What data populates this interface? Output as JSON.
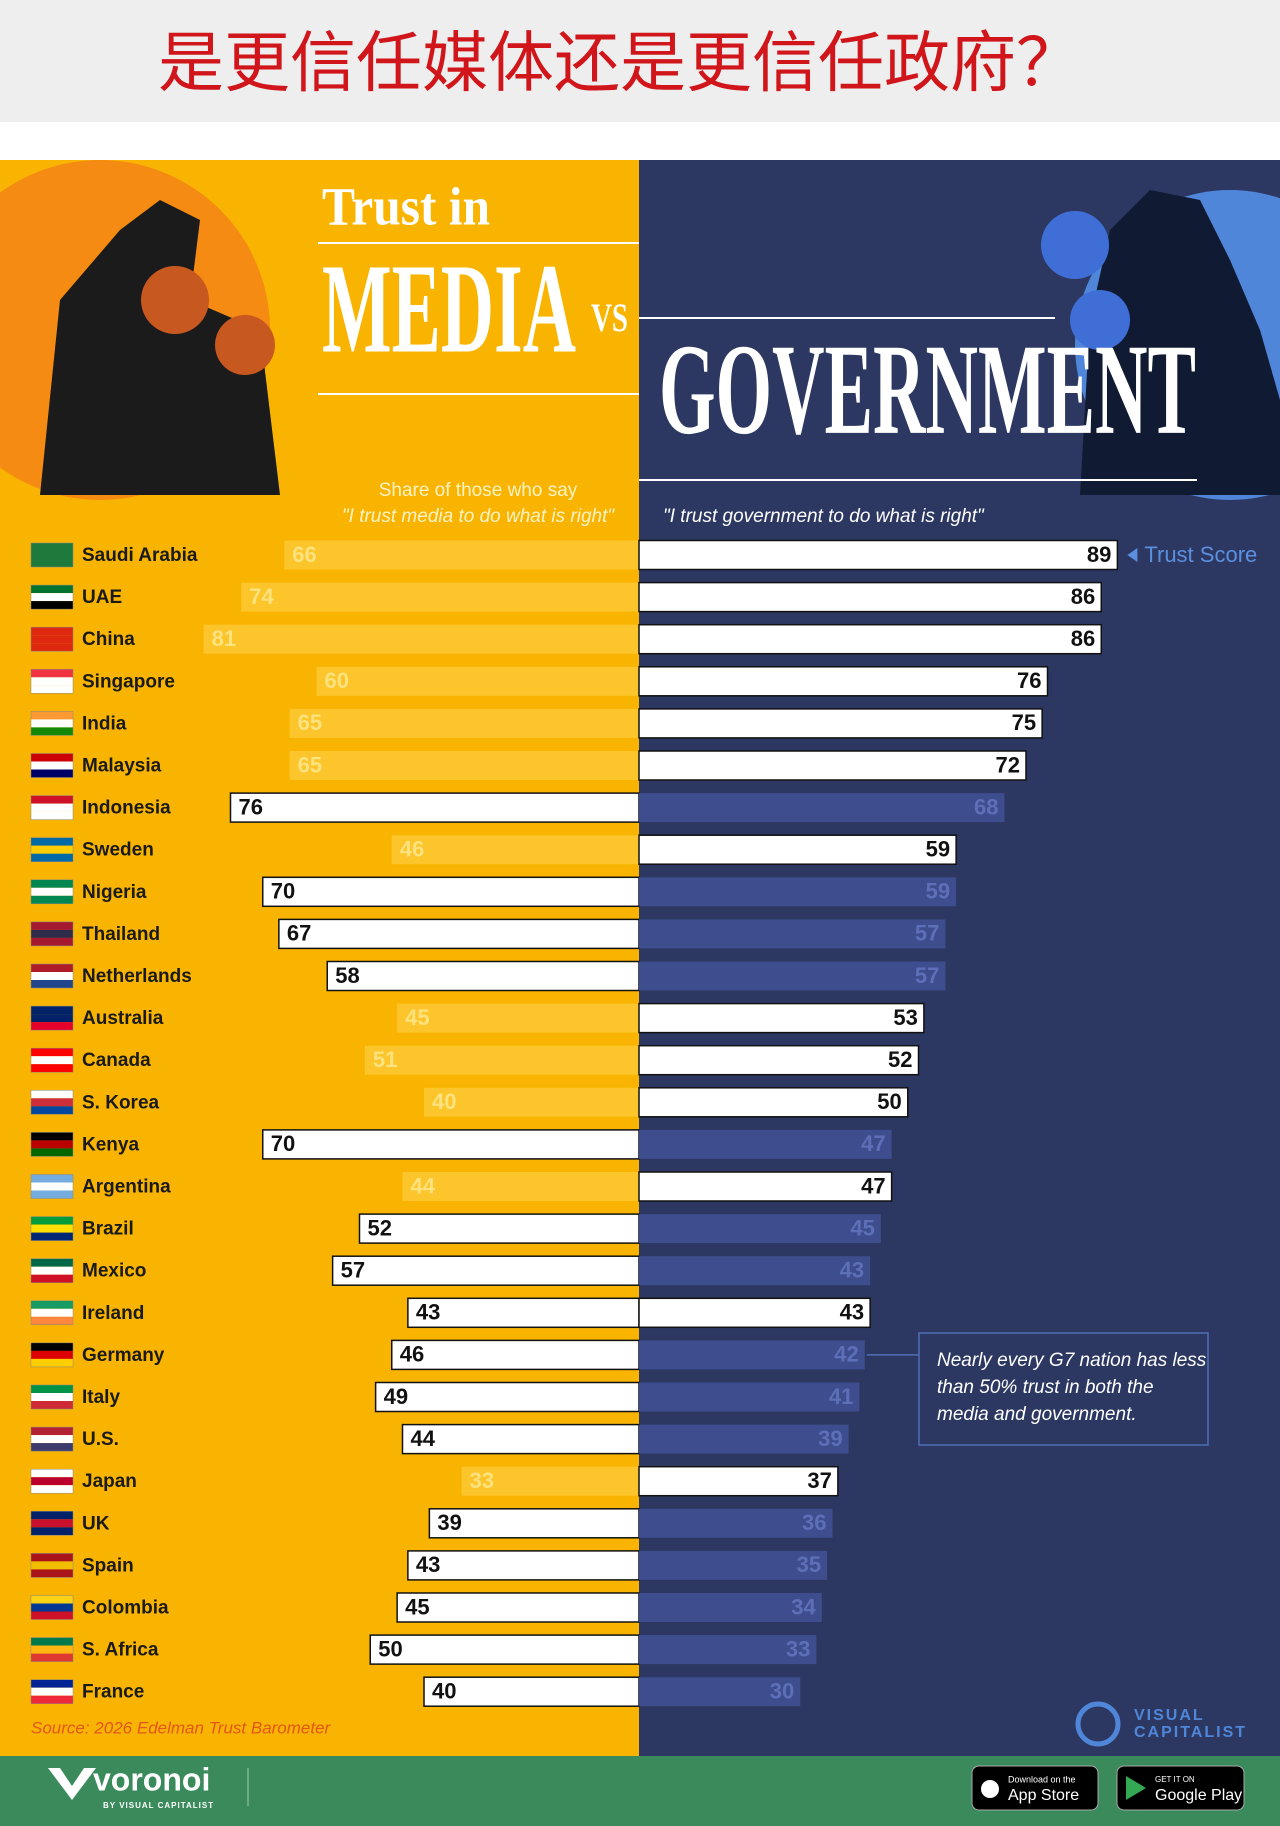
{
  "chart_data": {
    "type": "diverging-bar",
    "title": "是更信任媒体还是更信任政府？",
    "headline": {
      "line1": "Trust in",
      "left": "MEDIA",
      "vs": "VS",
      "right": "GOVERNMENT"
    },
    "left_subtitle": [
      "Share of those who say",
      "\"I trust media to do what is right\""
    ],
    "right_subtitle": "\"I trust government to do what is right\"",
    "annotation": "Trust Score",
    "note": [
      "Nearly every G7 nation has less",
      "than 50% trust in both the",
      "media and government."
    ],
    "source": "Source: 2026 Edelman Trust Barometer",
    "categories": [
      "Saudi Arabia",
      "UAE",
      "China",
      "Singapore",
      "India",
      "Malaysia",
      "Indonesia",
      "Sweden",
      "Nigeria",
      "Thailand",
      "Netherlands",
      "Australia",
      "Canada",
      "S. Korea",
      "Kenya",
      "Argentina",
      "Brazil",
      "Mexico",
      "Ireland",
      "Germany",
      "Italy",
      "U.S.",
      "Japan",
      "UK",
      "Spain",
      "Colombia",
      "S. Africa",
      "France"
    ],
    "series": [
      {
        "color": "#fcc52c",
        "label_color": "#fde27e",
        "values": [
          66,
          74,
          81,
          60,
          65,
          65,
          76,
          46,
          70,
          67,
          58,
          45,
          51,
          40,
          70,
          44,
          52,
          57,
          43,
          46,
          49,
          44,
          33,
          39,
          43,
          45,
          50,
          40
        ]
      },
      {
        "color": "#3e4d8e",
        "label_color": "#5d6fb6",
        "values": [
          89,
          86,
          86,
          76,
          75,
          72,
          68,
          59,
          59,
          57,
          57,
          53,
          52,
          50,
          47,
          47,
          45,
          43,
          43,
          42,
          41,
          39,
          37,
          36,
          35,
          34,
          33,
          30
        ]
      }
    ],
    "highlight_color": "#ffffff",
    "footer": {
      "brand": "voronoi",
      "byline": "BY VISUAL CAPITALIST",
      "logo": [
        "VISUAL",
        "CAPITALIST"
      ],
      "app_store": [
        "Download on the",
        "App Store"
      ],
      "google_play": [
        "GET IT ON",
        "Google Play"
      ]
    }
  }
}
